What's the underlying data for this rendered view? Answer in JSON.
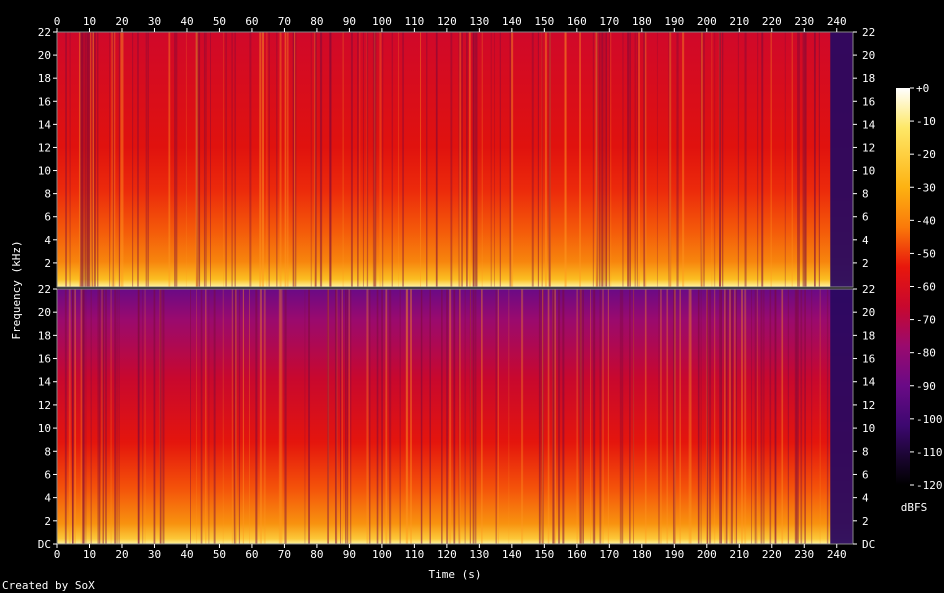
{
  "chart_data": {
    "type": "heatmap",
    "title": "",
    "xlabel": "Time (s)",
    "ylabel": "Frequency (kHz)",
    "x_ticks": [
      "0",
      "10",
      "20",
      "30",
      "40",
      "50",
      "60",
      "70",
      "80",
      "90",
      "100",
      "110",
      "120",
      "130",
      "140",
      "150",
      "160",
      "170",
      "180",
      "190",
      "200",
      "210",
      "220",
      "230",
      "240"
    ],
    "y_ticks_top": [
      "22",
      "20",
      "18",
      "16",
      "14",
      "12",
      "10",
      "8",
      "6",
      "4",
      "2"
    ],
    "y_ticks_bottom": [
      "22",
      "20",
      "18",
      "16",
      "14",
      "12",
      "10",
      "8",
      "6",
      "4",
      "2",
      "DC"
    ],
    "xlim": [
      0,
      245
    ],
    "ylim": [
      0,
      22
    ],
    "channels": [
      {
        "name": "",
        "quiet_end_s": 238
      },
      {
        "name": "",
        "quiet_end_s": 238
      }
    ],
    "colorbar": {
      "label": "dBFS",
      "ticks": [
        "+0",
        "-10",
        "-20",
        "-30",
        "-40",
        "-50",
        "-60",
        "-70",
        "-80",
        "-90",
        "-100",
        "-110",
        "-120"
      ],
      "range": [
        -120,
        0
      ]
    },
    "colors": [
      "#000000",
      "#1a0530",
      "#3d0870",
      "#6a0a86",
      "#9a0a6e",
      "#c8082e",
      "#e8170c",
      "#f5450a",
      "#fa7a0a",
      "#fdb212",
      "#fee868",
      "#ffffff"
    ]
  },
  "footer": {
    "credit": "Created by SoX"
  }
}
